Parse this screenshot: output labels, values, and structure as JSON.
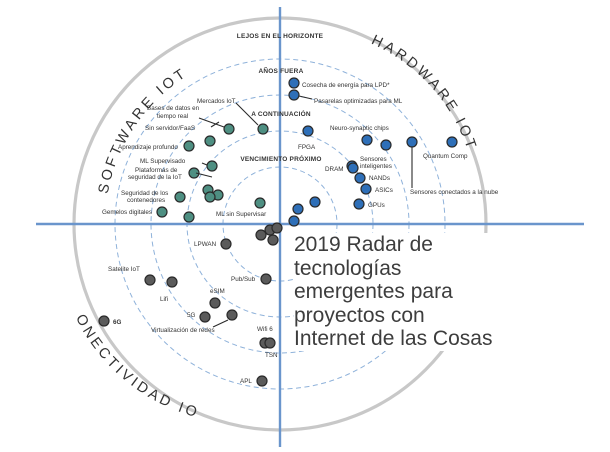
{
  "title": "2019 Radar de tecnologías emergentes para proyectos con Internet de las Cosas",
  "rings": {
    "far": "LEJOS EN EL HORIZONTE",
    "out": "AÑOS FUERA",
    "next": "A CONTINUACIÓN",
    "soon": "VENCIMIENTO PRÓXIMO"
  },
  "quadrants": {
    "software": "SOFTWARE IOT",
    "hardware": "HARDWARE IOT",
    "connectivity": "CONECTIVIDAD IOT"
  },
  "colors": {
    "software": "#4e8f82",
    "hardware": "#2e6fb8",
    "connectivity": "#5b5b5b",
    "axis": "#6a95cc",
    "dashed_ring": "#8fb2da",
    "outer_ring": "#c8c8c8"
  },
  "software_items": [
    "Mercados IoT",
    "Bases de datos en tiempo real",
    "Sin servidor/FaaS",
    "Aprendizaje profundo",
    "ML Supervisado",
    "Plataformas de seguridad de la IoT",
    "Seguridad de los contenedores",
    "Gemelos digitales",
    "ML sin Supervisar"
  ],
  "hardware_items": [
    "Cosecha de energía para LPD*",
    "Pasarelas optimizadas para ML",
    "Neuro-synaptic chips",
    "FPGA",
    "Quantum Comp",
    "Sensores inteligentes",
    "DRAM",
    "NANDs",
    "ASICs",
    "GPUs",
    "Sensores conectados a la nube"
  ],
  "connectivity_items": [
    "LPWAN",
    "Satelite IoT",
    "Lifi",
    "Pub/Sub",
    "eSIM",
    "5G",
    "6G",
    "Virtualización de redes",
    "Wifi 6",
    "TSN",
    "APL"
  ]
}
